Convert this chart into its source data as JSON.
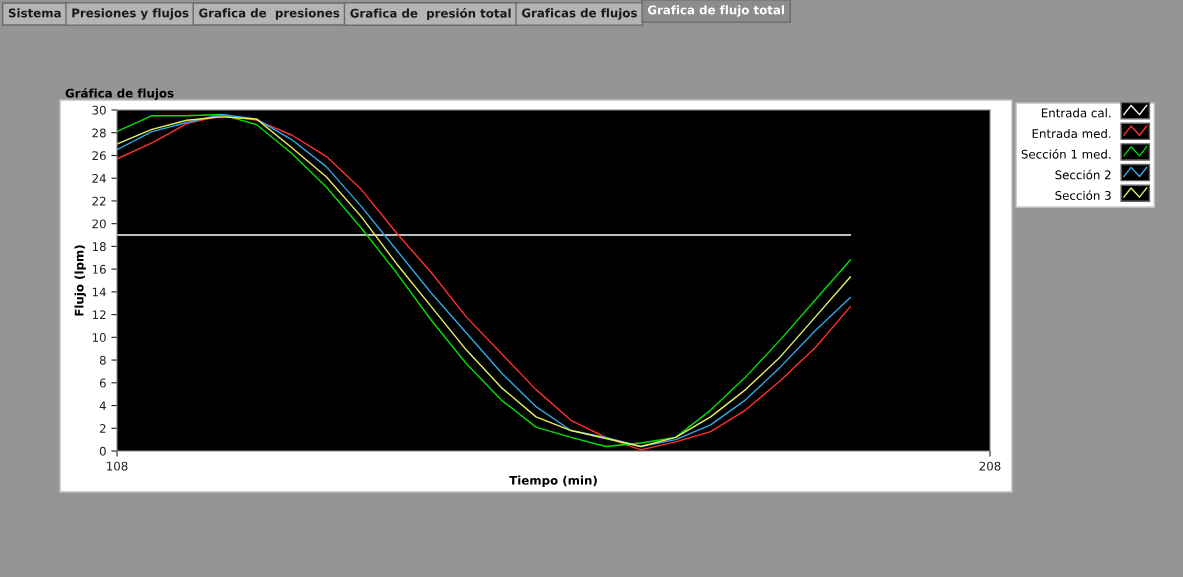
{
  "chart_data": {
    "type": "line",
    "title": "Gráfica de flujos",
    "xlabel": "Tiempo (min)",
    "ylabel": "Flujo (lpm)",
    "annotations": [
      "Sistema",
      "Presiones y flujos",
      "Grafica de  presiones",
      "Grafica de  presión total",
      "Graficas de flujos",
      "Grafica de flujo total"
    ],
    "x": [
      108,
      112,
      116,
      120,
      124,
      128,
      132,
      136,
      140,
      144,
      148,
      152,
      156,
      160,
      164,
      168,
      172,
      176,
      180,
      184,
      188,
      192
    ],
    "series": [
      {
        "name": "Entrada cal.",
        "color": "#ffffff",
        "x": [
          108,
          192
        ],
        "values": [
          19,
          19
        ]
      },
      {
        "name": "Entrada med.",
        "color": "#ff3030",
        "values": [
          25.7,
          27.1,
          28.8,
          29.5,
          29.1,
          27.8,
          25.9,
          23.0,
          19.2,
          15.7,
          11.8,
          8.6,
          5.4,
          2.7,
          1.2,
          0.1,
          0.8,
          1.7,
          3.6,
          6.2,
          9.1,
          12.7
        ]
      },
      {
        "name": "Sección 1 med.",
        "color": "#00e000",
        "values": [
          28.1,
          29.5,
          29.5,
          29.6,
          28.7,
          26.2,
          23.2,
          19.6,
          15.7,
          11.5,
          7.7,
          4.5,
          2.1,
          1.2,
          0.4,
          0.7,
          1.2,
          3.6,
          6.5,
          9.8,
          13.3,
          16.8
        ]
      },
      {
        "name": "Sección 2",
        "color": "#30a8e8",
        "values": [
          26.5,
          28.1,
          28.9,
          29.6,
          29.2,
          27.4,
          25.0,
          21.5,
          17.7,
          13.9,
          10.4,
          6.9,
          3.9,
          1.8,
          1.2,
          0.4,
          1.0,
          2.3,
          4.5,
          7.4,
          10.6,
          13.5
        ]
      },
      {
        "name": "Sección 3",
        "color": "#e8f060",
        "values": [
          27.0,
          28.3,
          29.1,
          29.4,
          29.2,
          26.7,
          24.1,
          20.6,
          16.5,
          12.7,
          8.9,
          5.6,
          3.0,
          1.8,
          1.1,
          0.4,
          1.2,
          3.0,
          5.4,
          8.3,
          11.8,
          15.3
        ]
      }
    ],
    "xlim": [
      108,
      208
    ],
    "xticks": [
      108,
      208
    ],
    "ylim": [
      0,
      30
    ],
    "yticks": [
      0,
      2,
      4,
      6,
      8,
      10,
      12,
      14,
      16,
      18,
      20,
      22,
      24,
      26,
      28,
      30
    ],
    "grid": false,
    "legend": "right",
    "marker": "none",
    "line_style": "solid"
  }
}
